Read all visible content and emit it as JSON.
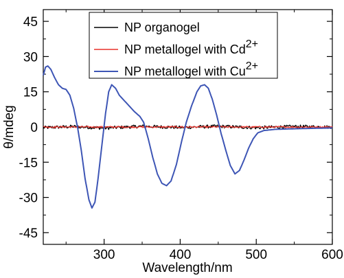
{
  "chart_data": {
    "type": "line",
    "xlabel": "Wavelength/nm",
    "ylabel": "θ/mdeg",
    "xlim": [
      220,
      600
    ],
    "ylim": [
      -50,
      50
    ],
    "x_ticks": [
      300,
      400,
      500,
      600
    ],
    "y_ticks": [
      45,
      30,
      15,
      0,
      -15,
      -30,
      -45
    ],
    "grid": false,
    "legend_position": "top-center",
    "series": [
      {
        "name": "NP organogel",
        "color": "#000000",
        "noise": 0.7,
        "points": [
          [
            220,
            -0.3
          ],
          [
            260,
            0.2
          ],
          [
            300,
            -0.5
          ],
          [
            350,
            0.3
          ],
          [
            400,
            -0.2
          ],
          [
            450,
            0.3
          ],
          [
            500,
            -0.3
          ],
          [
            550,
            0.2
          ],
          [
            600,
            0
          ]
        ]
      },
      {
        "name": "NP metallogel with Cd",
        "name_sup": "2+",
        "color": "#e8312a",
        "noise": 0.35,
        "points": [
          [
            220,
            0
          ],
          [
            300,
            0
          ],
          [
            400,
            0
          ],
          [
            500,
            0
          ],
          [
            600,
            0
          ]
        ]
      },
      {
        "name": "NP metallogel with Cu",
        "name_sup": "2+",
        "color": "#3d55b5",
        "noise": 0,
        "points": [
          [
            220,
            22
          ],
          [
            223,
            25.5
          ],
          [
            226,
            26
          ],
          [
            230,
            24.5
          ],
          [
            235,
            21
          ],
          [
            240,
            18
          ],
          [
            245,
            16.5
          ],
          [
            250,
            16
          ],
          [
            255,
            13.5
          ],
          [
            260,
            8
          ],
          [
            265,
            0
          ],
          [
            270,
            -10
          ],
          [
            275,
            -22
          ],
          [
            280,
            -31
          ],
          [
            284,
            -34.5
          ],
          [
            288,
            -32
          ],
          [
            292,
            -22
          ],
          [
            297,
            -8
          ],
          [
            302,
            6
          ],
          [
            306,
            15
          ],
          [
            310,
            18
          ],
          [
            315,
            16.5
          ],
          [
            320,
            13.5
          ],
          [
            330,
            10
          ],
          [
            340,
            6.5
          ],
          [
            347,
            4.5
          ],
          [
            352,
            2
          ],
          [
            358,
            -5
          ],
          [
            364,
            -13
          ],
          [
            370,
            -20
          ],
          [
            376,
            -24
          ],
          [
            382,
            -25
          ],
          [
            388,
            -23
          ],
          [
            395,
            -16
          ],
          [
            402,
            -6
          ],
          [
            408,
            2
          ],
          [
            415,
            9
          ],
          [
            422,
            15
          ],
          [
            427,
            17.5
          ],
          [
            432,
            18
          ],
          [
            437,
            16.5
          ],
          [
            442,
            12
          ],
          [
            448,
            5
          ],
          [
            454,
            -3
          ],
          [
            460,
            -10
          ],
          [
            466,
            -16.5
          ],
          [
            472,
            -20
          ],
          [
            478,
            -18.5
          ],
          [
            484,
            -14
          ],
          [
            490,
            -9
          ],
          [
            496,
            -5
          ],
          [
            502,
            -2.5
          ],
          [
            510,
            -1.5
          ],
          [
            525,
            -1
          ],
          [
            545,
            -0.8
          ],
          [
            570,
            -0.6
          ],
          [
            600,
            -0.4
          ]
        ]
      }
    ]
  }
}
